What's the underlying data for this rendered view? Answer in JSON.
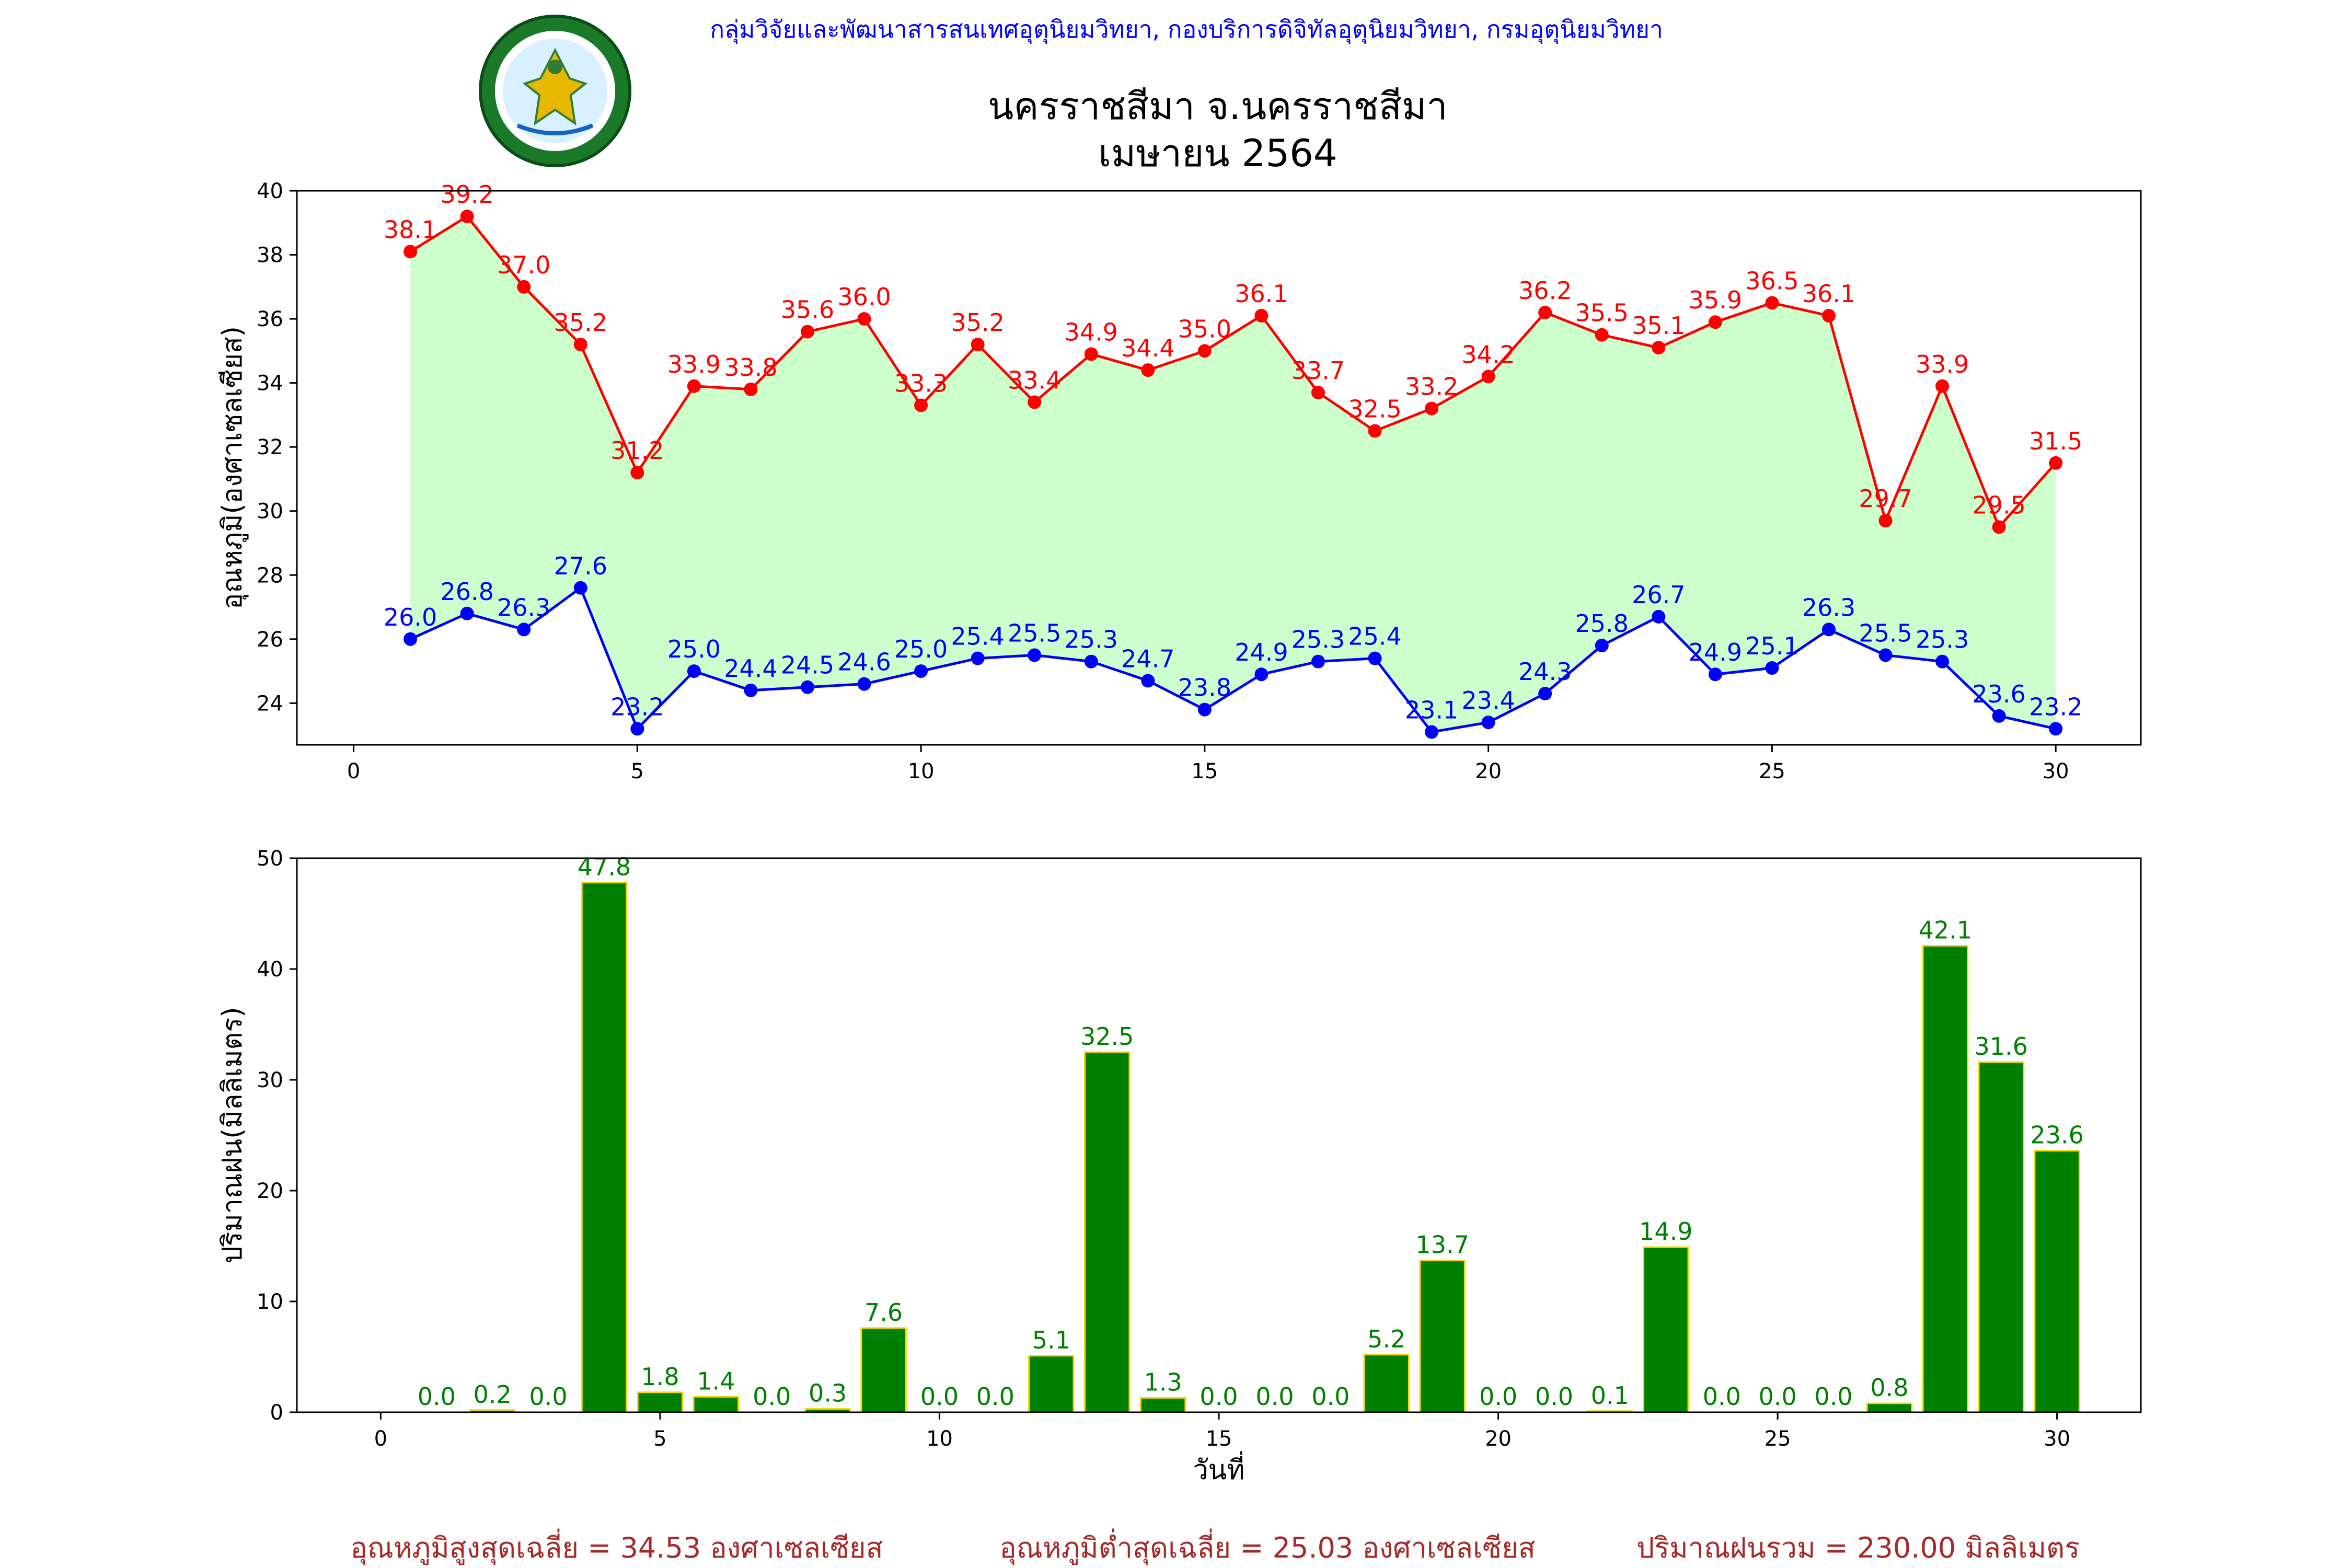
{
  "header": {
    "agency_text": "กลุ่มวิจัยและพัฒนาสารสนเทศอุตุนิยมวิทยา, กองบริการดิจิทัลอุตุนิยมวิทยา, กรมอุตุนิยมวิทยา",
    "title_line1": "นครราชสีมา จ.นครราชสีมา",
    "title_line2": "เมษายน 2564",
    "logo_text": "กรมอุตุนิยมวิทยา METEOROLOGICAL DEPARTMENT"
  },
  "footer": {
    "avg_max": "อุณหภูมิสูงสุดเฉลี่ย = 34.53 องศาเซลเซียส",
    "avg_min": "อุณหภูมิต่ำสุดเฉลี่ย = 25.03 องศาเซลเซียส",
    "total_rain": "ปริมาณฝนรวม = 230.00 มิลลิเมตร"
  },
  "colors": {
    "max_line": "#ff0000",
    "min_line": "#0000ff",
    "fill": "#ccffcc",
    "bar": "#008000",
    "bar_edge": "#ffd700",
    "agency": "#0000ff",
    "footer": "#a52a2a"
  },
  "chart_data": [
    {
      "type": "line",
      "ylabel": "อุณหภูมิ(องศาเซลเซียส)",
      "xlabel": "",
      "xlim": [
        -1,
        31.5
      ],
      "ylim": [
        22.7,
        40
      ],
      "xticks": [
        0,
        5,
        10,
        15,
        20,
        25,
        30
      ],
      "yticks": [
        24,
        26,
        28,
        30,
        32,
        34,
        36,
        38,
        40
      ],
      "x": [
        1,
        2,
        3,
        4,
        5,
        6,
        7,
        8,
        9,
        10,
        11,
        12,
        13,
        14,
        15,
        16,
        17,
        18,
        19,
        20,
        21,
        22,
        23,
        24,
        25,
        26,
        27,
        28,
        29,
        30
      ],
      "series": [
        {
          "values": [
            38.1,
            39.2,
            37.0,
            35.2,
            31.2,
            33.9,
            33.8,
            35.6,
            36.0,
            33.3,
            35.2,
            33.4,
            34.9,
            34.4,
            35.0,
            36.1,
            33.7,
            32.5,
            33.2,
            34.2,
            36.2,
            35.5,
            35.1,
            35.9,
            36.5,
            36.1,
            29.7,
            33.9,
            29.5,
            31.5
          ]
        },
        {
          "values": [
            26.0,
            26.8,
            26.3,
            27.6,
            23.2,
            25.0,
            24.4,
            24.5,
            24.6,
            25.0,
            25.4,
            25.5,
            25.3,
            24.7,
            23.8,
            24.9,
            25.3,
            25.4,
            23.1,
            23.4,
            24.3,
            25.8,
            26.7,
            24.9,
            25.1,
            26.3,
            25.5,
            25.3,
            23.6,
            23.2
          ]
        }
      ]
    },
    {
      "type": "bar",
      "ylabel": "ปริมาณฝน(มิลลิเมตร)",
      "xlabel": "วันที่",
      "xlim": [
        -1.5,
        31.5
      ],
      "ylim": [
        0,
        50
      ],
      "xticks": [
        0,
        5,
        10,
        15,
        20,
        25,
        30
      ],
      "yticks": [
        0,
        10,
        20,
        30,
        40,
        50
      ],
      "x": [
        1,
        2,
        3,
        4,
        5,
        6,
        7,
        8,
        9,
        10,
        11,
        12,
        13,
        14,
        15,
        16,
        17,
        18,
        19,
        20,
        21,
        22,
        23,
        24,
        25,
        26,
        27,
        28,
        29,
        30
      ],
      "values": [
        0.0,
        0.2,
        0.0,
        47.8,
        1.8,
        1.4,
        0.0,
        0.3,
        7.6,
        0.0,
        0.0,
        5.1,
        32.5,
        1.3,
        0.0,
        0.0,
        0.0,
        5.2,
        13.7,
        0.0,
        0.0,
        0.1,
        14.9,
        0.0,
        0.0,
        0.0,
        0.8,
        42.1,
        31.6,
        23.6
      ]
    }
  ]
}
